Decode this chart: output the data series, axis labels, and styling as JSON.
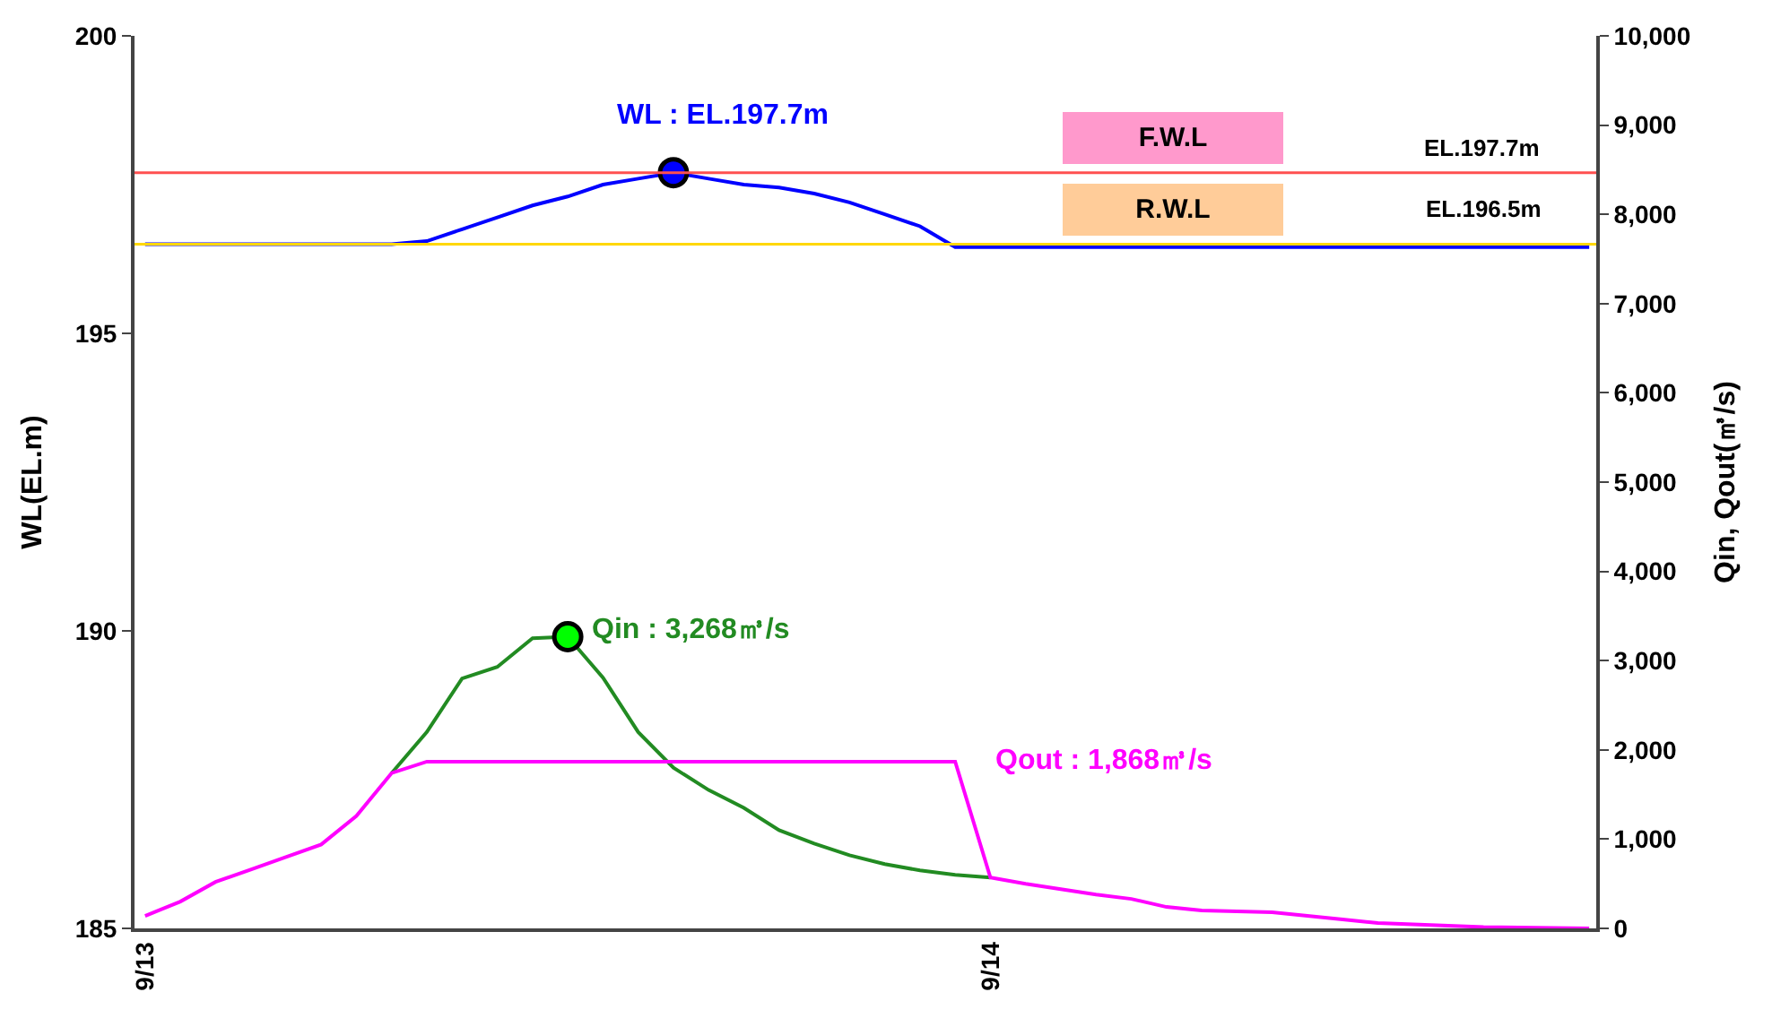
{
  "chart_data": {
    "type": "line",
    "categories": [
      "9/13",
      null,
      null,
      null,
      null,
      null,
      null,
      null,
      null,
      null,
      null,
      null,
      null,
      null,
      null,
      null,
      null,
      null,
      null,
      null,
      null,
      null,
      null,
      null,
      "9/14",
      null,
      null,
      null,
      null,
      null,
      null,
      null,
      null,
      null,
      null,
      null,
      null,
      null,
      null,
      null,
      null,
      null
    ],
    "ylabel": "WL(EL.m)",
    "y2label": "Qin, Qout(㎥/s)",
    "ylim": [
      185,
      200
    ],
    "yticks": [
      185,
      190,
      195,
      200
    ],
    "y2lim": [
      0,
      10000
    ],
    "y2ticks": [
      0,
      {
        "value": 1000,
        "label": "1,000"
      },
      {
        "value": 2000,
        "label": "2,000"
      },
      {
        "value": 3000,
        "label": "3,000"
      },
      {
        "value": 4000,
        "label": "4,000"
      },
      {
        "value": 5000,
        "label": "5,000"
      },
      {
        "value": 6000,
        "label": "6,000"
      },
      {
        "value": 7000,
        "label": "7,000"
      },
      {
        "value": 8000,
        "label": "8,000"
      },
      {
        "value": 9000,
        "label": "9,000"
      },
      {
        "value": 10000,
        "label": "10,000"
      }
    ],
    "marker": "none",
    "line_style": "solid",
    "series": [
      {
        "color": "#0000ff",
        "axis": "y",
        "values": [
          196.5,
          196.5,
          196.5,
          196.5,
          196.5,
          196.5,
          196.5,
          196.5,
          196.55,
          196.75,
          196.95,
          197.15,
          197.3,
          197.5,
          197.6,
          197.7,
          197.6,
          197.5,
          197.45,
          197.35,
          197.2,
          197.0,
          196.8,
          196.45,
          196.45,
          196.45,
          196.45,
          196.45,
          196.45,
          196.45,
          196.45,
          196.45,
          196.45,
          196.45,
          196.45,
          196.45,
          196.45,
          196.45,
          196.45,
          196.45,
          196.45,
          196.45
        ]
      },
      {
        "color": "#228b22",
        "axis": "y2",
        "values": [
          null,
          null,
          null,
          null,
          null,
          null,
          null,
          1740,
          2200,
          2800,
          2930,
          3250,
          3268,
          2810,
          2200,
          1800,
          1550,
          1350,
          1100,
          950,
          820,
          720,
          650,
          600,
          570,
          null,
          null,
          null,
          null,
          null,
          null,
          null,
          null,
          null,
          null,
          null,
          null,
          null,
          null,
          null,
          null,
          null
        ]
      },
      {
        "color": "#ff00ff",
        "axis": "y2",
        "values": [
          140,
          300,
          520,
          660,
          800,
          940,
          1260,
          1740,
          1868,
          1868,
          1868,
          1868,
          1868,
          1868,
          1868,
          1868,
          1868,
          1868,
          1868,
          1868,
          1868,
          1868,
          1868,
          1868,
          570,
          500,
          440,
          380,
          330,
          240,
          200,
          190,
          180,
          140,
          100,
          60,
          45,
          30,
          15,
          10,
          5,
          0
        ]
      },
      {
        "type": "scatter",
        "marker": "circle",
        "color": "#0000ff",
        "axis": "y",
        "values": [
          null,
          null,
          null,
          null,
          null,
          null,
          null,
          null,
          null,
          null,
          null,
          null,
          null,
          null,
          null,
          197.7,
          null,
          null,
          null,
          null,
          null,
          null,
          null,
          null,
          null,
          null,
          null,
          null,
          null,
          null,
          null,
          null,
          null,
          null,
          null,
          null,
          null,
          null,
          null,
          null,
          null,
          null
        ]
      },
      {
        "type": "scatter",
        "marker": "circle",
        "color": "#00ff00",
        "axis": "y2",
        "values": [
          null,
          null,
          null,
          null,
          null,
          null,
          null,
          null,
          null,
          null,
          null,
          null,
          3268,
          null,
          null,
          null,
          null,
          null,
          null,
          null,
          null,
          null,
          null,
          null,
          null,
          null,
          null,
          null,
          null,
          null,
          null,
          null,
          null,
          null,
          null,
          null,
          null,
          null,
          null,
          null,
          null,
          null
        ]
      }
    ],
    "ref_lines": [
      {
        "axis": "y",
        "value": 197.7,
        "label": "F.W.L",
        "color": "#ff5050"
      },
      {
        "axis": "y",
        "value": 196.5,
        "label": "R.W.L",
        "color": "#ffd700"
      }
    ],
    "annotations": [
      "WL : EL.197.7m",
      "Qin : 3,268㎥/s",
      "Qout : 1,868㎥/s",
      "EL.197.7m",
      "EL.196.5m"
    ]
  }
}
